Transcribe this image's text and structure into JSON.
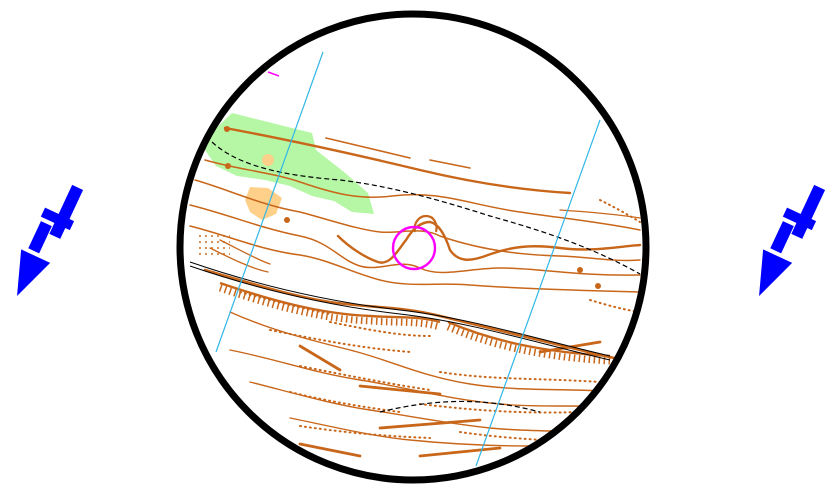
{
  "map": {
    "type": "orienteering-map-excerpt",
    "projection": "circular-lens",
    "colors": {
      "background": "#ffffff",
      "lens_border": "#000000",
      "contour": "#c8661a",
      "magnetic_north_lines": "#31b7e6",
      "open_land": "#ffd08a",
      "vegetation": "#b6f7a6",
      "control_circle": "#ff00ff",
      "path": "#000000",
      "arrow": "#0000ff"
    },
    "features": [
      {
        "kind": "contour",
        "name": "contour-lines"
      },
      {
        "kind": "formline",
        "name": "form-lines"
      },
      {
        "kind": "vegetation",
        "name": "vegetation-green"
      },
      {
        "kind": "open-land",
        "name": "open-land-yellow"
      },
      {
        "kind": "path",
        "name": "dashed-paths"
      },
      {
        "kind": "cliff",
        "name": "earth-bank-ticks"
      },
      {
        "kind": "control",
        "name": "control-circle"
      },
      {
        "kind": "meridian",
        "name": "magnetic-north-lines"
      }
    ],
    "arrows": [
      {
        "side": "left",
        "icon": "north-arrow-icon"
      },
      {
        "side": "right",
        "icon": "north-arrow-icon"
      }
    ]
  }
}
